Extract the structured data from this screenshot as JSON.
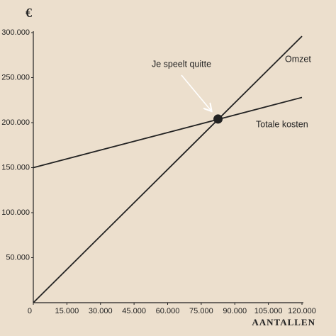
{
  "chart_data": {
    "type": "line",
    "y_label": "€",
    "x_label": "AANTALLEN",
    "x": [
      0,
      120000
    ],
    "xlim": [
      0,
      120000
    ],
    "ylim": [
      0,
      300000
    ],
    "xticks": [
      0,
      {
        "value": 15000,
        "label": "15.000"
      },
      {
        "value": 30000,
        "label": "30.000"
      },
      {
        "value": 45000,
        "label": "45.000"
      },
      {
        "value": 60000,
        "label": "60.000"
      },
      {
        "value": 75000,
        "label": "75.000"
      },
      {
        "value": 90000,
        "label": "90.000"
      },
      {
        "value": 105000,
        "label": "105.000"
      },
      {
        "value": 120000,
        "label": "120.000"
      }
    ],
    "yticks": [
      {
        "value": 50000,
        "label": "50.000"
      },
      {
        "value": 100000,
        "label": "100.000"
      },
      {
        "value": 150000,
        "label": "150.000"
      },
      {
        "value": 200000,
        "label": "200.000"
      },
      {
        "value": 250000,
        "label": "250.000"
      },
      {
        "value": 300000,
        "label": "300.000"
      }
    ],
    "grid": false,
    "series": [
      {
        "name": "Omzet",
        "color": "#222222",
        "values": [
          0,
          296000
        ]
      },
      {
        "name": "Totale kosten",
        "color": "#222222",
        "values": [
          150000,
          228000
        ]
      }
    ],
    "annotations": [
      {
        "text": "Je speelt quitte",
        "x": 82500,
        "y": 204000
      }
    ]
  }
}
